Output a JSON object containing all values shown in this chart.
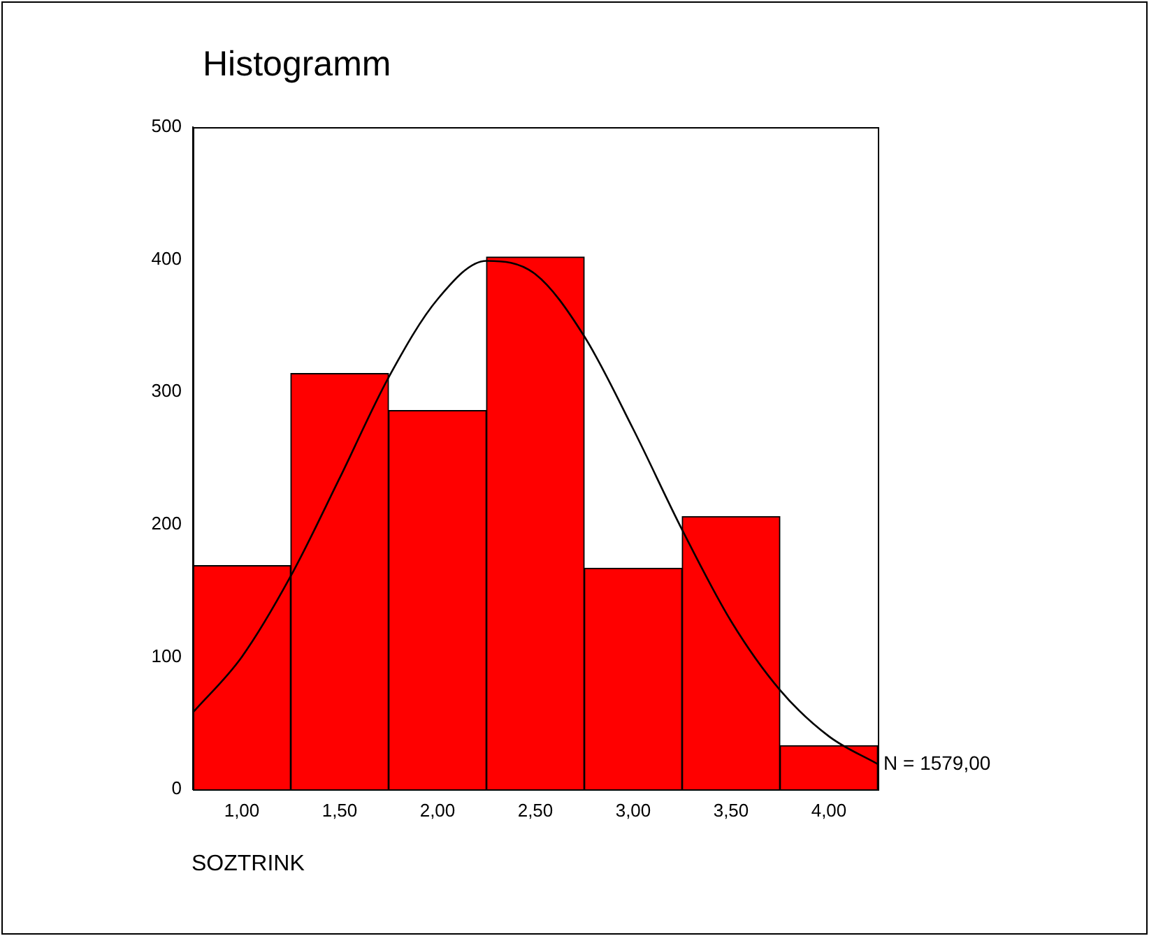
{
  "chart_data": {
    "type": "histogram",
    "title": "Histogramm",
    "xlabel": "SOZTRINK",
    "bins": [
      0.75,
      1.25,
      1.75,
      2.25,
      2.75,
      3.25,
      3.75,
      4.25
    ],
    "values": [
      169,
      314,
      286,
      402,
      167,
      206,
      33
    ],
    "color": "#ff0000",
    "series": [
      {
        "type": "line",
        "color": "#000000",
        "x": [
          0.75,
          1.0,
          1.25,
          1.5,
          1.75,
          2.0,
          2.25,
          2.5,
          2.75,
          3.0,
          3.25,
          3.5,
          3.75,
          4.0,
          4.25
        ],
        "values": [
          58,
          100,
          161,
          235,
          311,
          370,
          399,
          389,
          342,
          272,
          196,
          127,
          75,
          40,
          19
        ]
      }
    ],
    "xlim": [
      0.75,
      4.25
    ],
    "xticks": [
      {
        "value": 1,
        "label": "1,00"
      },
      {
        "value": 1.5,
        "label": "1,50"
      },
      {
        "value": 2,
        "label": "2,00"
      },
      {
        "value": 2.5,
        "label": "2,50"
      },
      {
        "value": 3,
        "label": "3,00"
      },
      {
        "value": 3.5,
        "label": "3,50"
      },
      {
        "value": 4,
        "label": "4,00"
      }
    ],
    "ylim": [
      0,
      500
    ],
    "yticks": [
      0,
      100,
      200,
      300,
      400,
      500
    ],
    "grid": false,
    "legend": false,
    "marker": "none",
    "line_style": "solid",
    "annotations": [
      "N = 1579,00"
    ]
  }
}
